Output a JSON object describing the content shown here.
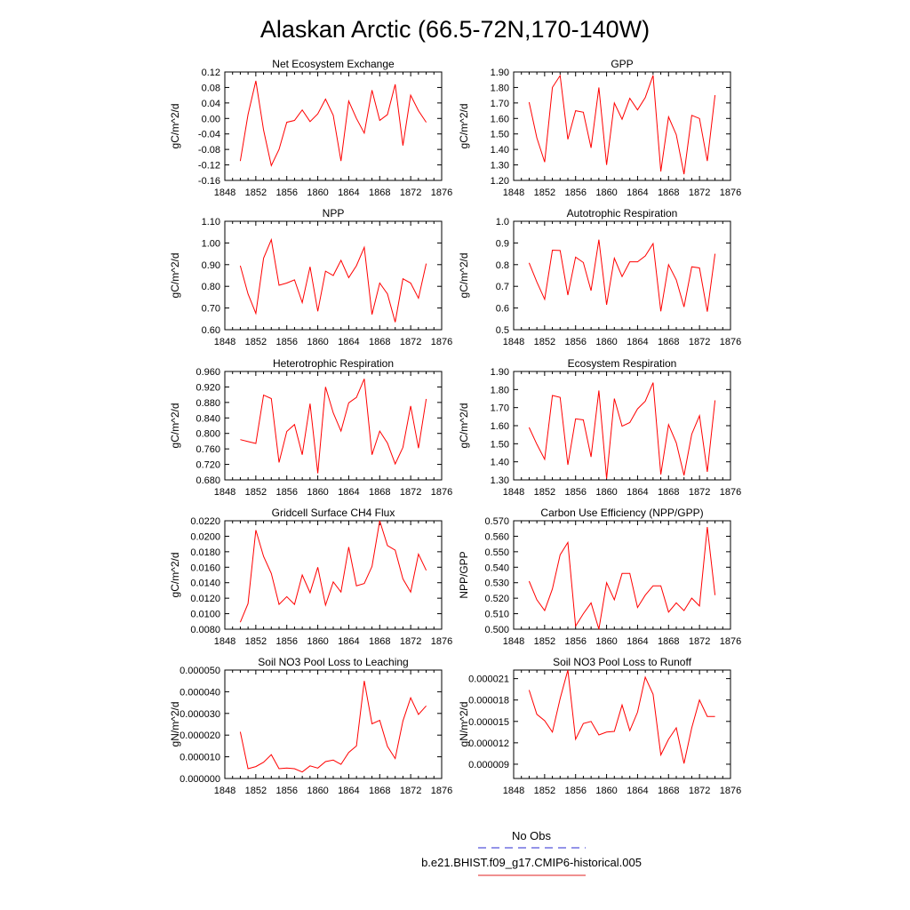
{
  "page_title": "Alaskan Arctic (66.5-72N,170-140W)",
  "legend": {
    "entries": [
      {
        "label": "No Obs",
        "color": "#2a2ad0",
        "dash": true
      },
      {
        "label": "b.e21.BHIST.f09_g17.CMIP6-historical.005",
        "color": "#e02020",
        "dash": false
      }
    ]
  },
  "colors": {
    "series": "#ff0000",
    "axis": "#000000"
  },
  "chart_data": [
    {
      "type": "line",
      "title": "Net Ecosystem Exchange",
      "ylabel": "gC/m^2/d",
      "xlim": [
        1848,
        1876
      ],
      "xticks": [
        1848,
        1852,
        1856,
        1860,
        1864,
        1868,
        1872,
        1876
      ],
      "ylim": [
        -0.16,
        0.12
      ],
      "yticks": [
        -0.16,
        -0.12,
        -0.08,
        -0.04,
        0.0,
        0.04,
        0.08,
        0.12
      ],
      "ytick_labels": [
        "-0.16",
        "-0.12",
        "-0.08",
        "-0.04",
        "0.00",
        "0.04",
        "0.08",
        "0.12"
      ],
      "x": [
        1850,
        1851,
        1852,
        1853,
        1854,
        1855,
        1856,
        1857,
        1858,
        1859,
        1860,
        1861,
        1862,
        1863,
        1864,
        1865,
        1866,
        1867,
        1868,
        1869,
        1870,
        1871,
        1872,
        1873,
        1874
      ],
      "series": [
        {
          "values": [
            -0.11,
            0.01,
            0.097,
            -0.03,
            -0.122,
            -0.08,
            -0.01,
            -0.005,
            0.022,
            -0.008,
            0.012,
            0.05,
            0.008,
            -0.11,
            0.045,
            0.0,
            -0.038,
            0.073,
            -0.005,
            0.01,
            0.088,
            -0.07,
            0.06,
            0.02,
            -0.01
          ]
        }
      ]
    },
    {
      "type": "line",
      "title": "GPP",
      "ylabel": "gC/m^2/d",
      "xlim": [
        1848,
        1876
      ],
      "xticks": [
        1848,
        1852,
        1856,
        1860,
        1864,
        1868,
        1872,
        1876
      ],
      "ylim": [
        1.2,
        1.9
      ],
      "yticks": [
        1.2,
        1.3,
        1.4,
        1.5,
        1.6,
        1.7,
        1.8,
        1.9
      ],
      "ytick_labels": [
        "1.20",
        "1.30",
        "1.40",
        "1.50",
        "1.60",
        "1.70",
        "1.80",
        "1.90"
      ],
      "x": [
        1850,
        1851,
        1852,
        1853,
        1854,
        1855,
        1856,
        1857,
        1858,
        1859,
        1860,
        1861,
        1862,
        1863,
        1864,
        1865,
        1866,
        1867,
        1868,
        1869,
        1870,
        1871,
        1872,
        1873,
        1874
      ],
      "series": [
        {
          "values": [
            1.705,
            1.475,
            1.318,
            1.8,
            1.877,
            1.465,
            1.65,
            1.64,
            1.41,
            1.8,
            1.3,
            1.7,
            1.595,
            1.73,
            1.655,
            1.735,
            1.878,
            1.258,
            1.61,
            1.495,
            1.24,
            1.62,
            1.6,
            1.325,
            1.75
          ]
        }
      ]
    },
    {
      "type": "line",
      "title": "NPP",
      "ylabel": "gC/m^2/d",
      "xlim": [
        1848,
        1876
      ],
      "xticks": [
        1848,
        1852,
        1856,
        1860,
        1864,
        1868,
        1872,
        1876
      ],
      "ylim": [
        0.6,
        1.1
      ],
      "yticks": [
        0.6,
        0.7,
        0.8,
        0.9,
        1.0,
        1.1
      ],
      "ytick_labels": [
        "0.60",
        "0.70",
        "0.80",
        "0.90",
        "1.00",
        "1.10"
      ],
      "x": [
        1850,
        1851,
        1852,
        1853,
        1854,
        1855,
        1856,
        1857,
        1858,
        1859,
        1860,
        1861,
        1862,
        1863,
        1864,
        1865,
        1866,
        1867,
        1868,
        1869,
        1870,
        1871,
        1872,
        1873,
        1874
      ],
      "series": [
        {
          "values": [
            0.895,
            0.765,
            0.675,
            0.93,
            1.015,
            0.805,
            0.815,
            0.83,
            0.725,
            0.89,
            0.685,
            0.87,
            0.85,
            0.92,
            0.84,
            0.895,
            0.98,
            0.67,
            0.815,
            0.765,
            0.635,
            0.835,
            0.815,
            0.745,
            0.905
          ]
        }
      ]
    },
    {
      "type": "line",
      "title": "Autotrophic Respiration",
      "ylabel": "gC/m^2/d",
      "xlim": [
        1848,
        1876
      ],
      "xticks": [
        1848,
        1852,
        1856,
        1860,
        1864,
        1868,
        1872,
        1876
      ],
      "ylim": [
        0.5,
        1.0
      ],
      "yticks": [
        0.5,
        0.6,
        0.7,
        0.8,
        0.9,
        1.0
      ],
      "ytick_labels": [
        "0.5",
        "0.6",
        "0.7",
        "0.8",
        "0.9",
        "1.0"
      ],
      "x": [
        1850,
        1851,
        1852,
        1853,
        1854,
        1855,
        1856,
        1857,
        1858,
        1859,
        1860,
        1861,
        1862,
        1863,
        1864,
        1865,
        1866,
        1867,
        1868,
        1869,
        1870,
        1871,
        1872,
        1873,
        1874
      ],
      "series": [
        {
          "values": [
            0.808,
            0.72,
            0.64,
            0.867,
            0.865,
            0.66,
            0.835,
            0.81,
            0.68,
            0.915,
            0.615,
            0.83,
            0.745,
            0.813,
            0.813,
            0.84,
            0.897,
            0.585,
            0.8,
            0.73,
            0.605,
            0.79,
            0.785,
            0.583,
            0.85
          ]
        }
      ]
    },
    {
      "type": "line",
      "title": "Heterotrophic Respiration",
      "ylabel": "gC/m^2/d",
      "xlim": [
        1848,
        1876
      ],
      "xticks": [
        1848,
        1852,
        1856,
        1860,
        1864,
        1868,
        1872,
        1876
      ],
      "ylim": [
        0.68,
        0.96
      ],
      "yticks": [
        0.68,
        0.72,
        0.76,
        0.8,
        0.84,
        0.88,
        0.92,
        0.96
      ],
      "ytick_labels": [
        "0.680",
        "0.720",
        "0.760",
        "0.800",
        "0.840",
        "0.880",
        "0.920",
        "0.960"
      ],
      "x": [
        1850,
        1851,
        1852,
        1853,
        1854,
        1855,
        1856,
        1857,
        1858,
        1859,
        1860,
        1861,
        1862,
        1863,
        1864,
        1865,
        1866,
        1867,
        1868,
        1869,
        1870,
        1871,
        1872,
        1873,
        1874
      ],
      "series": [
        {
          "values": [
            0.784,
            0.779,
            0.774,
            0.899,
            0.89,
            0.725,
            0.805,
            0.823,
            0.745,
            0.877,
            0.697,
            0.92,
            0.853,
            0.806,
            0.879,
            0.893,
            0.941,
            0.745,
            0.806,
            0.775,
            0.721,
            0.764,
            0.871,
            0.762,
            0.889
          ]
        }
      ]
    },
    {
      "type": "line",
      "title": "Ecosystem Respiration",
      "ylabel": "gC/m^2/d",
      "xlim": [
        1848,
        1876
      ],
      "xticks": [
        1848,
        1852,
        1856,
        1860,
        1864,
        1868,
        1872,
        1876
      ],
      "ylim": [
        1.3,
        1.9
      ],
      "yticks": [
        1.3,
        1.4,
        1.5,
        1.6,
        1.7,
        1.8,
        1.9
      ],
      "ytick_labels": [
        "1.30",
        "1.40",
        "1.50",
        "1.60",
        "1.70",
        "1.80",
        "1.90"
      ],
      "x": [
        1850,
        1851,
        1852,
        1853,
        1854,
        1855,
        1856,
        1857,
        1858,
        1859,
        1860,
        1861,
        1862,
        1863,
        1864,
        1865,
        1866,
        1867,
        1868,
        1869,
        1870,
        1871,
        1872,
        1873,
        1874
      ],
      "series": [
        {
          "values": [
            1.59,
            1.497,
            1.414,
            1.767,
            1.757,
            1.383,
            1.638,
            1.632,
            1.427,
            1.795,
            1.307,
            1.75,
            1.597,
            1.617,
            1.693,
            1.735,
            1.838,
            1.33,
            1.606,
            1.505,
            1.325,
            1.553,
            1.655,
            1.345,
            1.74
          ]
        }
      ]
    },
    {
      "type": "line",
      "title": "Gridcell Surface CH4 Flux",
      "ylabel": "gC/m^2/d",
      "xlim": [
        1848,
        1876
      ],
      "xticks": [
        1848,
        1852,
        1856,
        1860,
        1864,
        1868,
        1872,
        1876
      ],
      "ylim": [
        0.008,
        0.022
      ],
      "yticks": [
        0.008,
        0.01,
        0.012,
        0.014,
        0.016,
        0.018,
        0.02,
        0.022
      ],
      "ytick_labels": [
        "0.0080",
        "0.0100",
        "0.0120",
        "0.0140",
        "0.0160",
        "0.0180",
        "0.0200",
        "0.0220"
      ],
      "x": [
        1850,
        1851,
        1852,
        1853,
        1854,
        1855,
        1856,
        1857,
        1858,
        1859,
        1860,
        1861,
        1862,
        1863,
        1864,
        1865,
        1866,
        1867,
        1868,
        1869,
        1870,
        1871,
        1872,
        1873,
        1874
      ],
      "series": [
        {
          "values": [
            0.0089,
            0.0113,
            0.0208,
            0.0174,
            0.0152,
            0.0112,
            0.0122,
            0.0112,
            0.015,
            0.0127,
            0.016,
            0.0111,
            0.0141,
            0.0128,
            0.0186,
            0.0136,
            0.0139,
            0.0161,
            0.022,
            0.0188,
            0.0182,
            0.0145,
            0.0128,
            0.0177,
            0.0156
          ]
        }
      ]
    },
    {
      "type": "line",
      "title": "Carbon Use Efficiency (NPP/GPP)",
      "ylabel": "NPP/GPP",
      "xlim": [
        1848,
        1876
      ],
      "xticks": [
        1848,
        1852,
        1856,
        1860,
        1864,
        1868,
        1872,
        1876
      ],
      "ylim": [
        0.5,
        0.57
      ],
      "yticks": [
        0.5,
        0.51,
        0.52,
        0.53,
        0.54,
        0.55,
        0.56,
        0.57
      ],
      "ytick_labels": [
        "0.500",
        "0.510",
        "0.520",
        "0.530",
        "0.540",
        "0.550",
        "0.560",
        "0.570"
      ],
      "x": [
        1850,
        1851,
        1852,
        1853,
        1854,
        1855,
        1856,
        1857,
        1858,
        1859,
        1860,
        1861,
        1862,
        1863,
        1864,
        1865,
        1866,
        1867,
        1868,
        1869,
        1870,
        1871,
        1872,
        1873,
        1874
      ],
      "series": [
        {
          "values": [
            0.531,
            0.519,
            0.512,
            0.526,
            0.548,
            0.556,
            0.502,
            0.51,
            0.517,
            0.5,
            0.53,
            0.519,
            0.536,
            0.536,
            0.514,
            0.522,
            0.528,
            0.528,
            0.511,
            0.517,
            0.512,
            0.52,
            0.515,
            0.566,
            0.522
          ]
        }
      ]
    },
    {
      "type": "line",
      "title": "Soil NO3 Pool Loss to Leaching",
      "ylabel": "gN/m^2/d",
      "xlim": [
        1848,
        1876
      ],
      "xticks": [
        1848,
        1852,
        1856,
        1860,
        1864,
        1868,
        1872,
        1876
      ],
      "ylim": [
        0.0,
        5e-05
      ],
      "yticks": [
        0.0,
        1e-05,
        2e-05,
        3e-05,
        4e-05,
        5e-05
      ],
      "ytick_labels": [
        "0.000000",
        "0.000010",
        "0.000020",
        "0.000030",
        "0.000040",
        "0.000050"
      ],
      "x": [
        1850,
        1851,
        1852,
        1853,
        1854,
        1855,
        1856,
        1857,
        1858,
        1859,
        1860,
        1861,
        1862,
        1863,
        1864,
        1865,
        1866,
        1867,
        1868,
        1869,
        1870,
        1871,
        1872,
        1873,
        1874
      ],
      "series": [
        {
          "values": [
            2.15e-05,
            4.5e-06,
            5.5e-06,
            7.5e-06,
            1.1e-05,
            4.5e-06,
            4.8e-06,
            4.5e-06,
            3e-06,
            5.8e-06,
            4.8e-06,
            7.8e-06,
            8.5e-06,
            6.5e-06,
            1.2e-05,
            1.5e-05,
            4.5e-05,
            2.52e-05,
            2.68e-05,
            1.48e-05,
            9.2e-06,
            2.65e-05,
            3.72e-05,
            2.95e-05,
            3.35e-05
          ]
        }
      ]
    },
    {
      "type": "line",
      "title": "Soil NO3 Pool Loss to Runoff",
      "ylabel": "gN/m^2/d",
      "xlim": [
        1848,
        1876
      ],
      "xticks": [
        1848,
        1852,
        1856,
        1860,
        1864,
        1868,
        1872,
        1876
      ],
      "ylim": [
        7e-06,
        2.22e-05
      ],
      "yticks": [
        9e-06,
        1.2e-05,
        1.5e-05,
        1.8e-05,
        2.1e-05
      ],
      "ytick_labels": [
        "0.000009",
        "0.000012",
        "0.000015",
        "0.000018",
        "0.000021"
      ],
      "x": [
        1850,
        1851,
        1852,
        1853,
        1854,
        1855,
        1856,
        1857,
        1858,
        1859,
        1860,
        1861,
        1862,
        1863,
        1864,
        1865,
        1866,
        1867,
        1868,
        1869,
        1870,
        1871,
        1872,
        1873,
        1874
      ],
      "series": [
        {
          "values": [
            1.94e-05,
            1.6e-05,
            1.51e-05,
            1.35e-05,
            1.82e-05,
            2.22e-05,
            1.25e-05,
            1.47e-05,
            1.5e-05,
            1.31e-05,
            1.35e-05,
            1.36e-05,
            1.73e-05,
            1.37e-05,
            1.63e-05,
            2.12e-05,
            1.88e-05,
            1.03e-05,
            1.25e-05,
            1.41e-05,
            9.1e-06,
            1.41e-05,
            1.8e-05,
            1.57e-05,
            1.57e-05
          ]
        }
      ]
    }
  ]
}
